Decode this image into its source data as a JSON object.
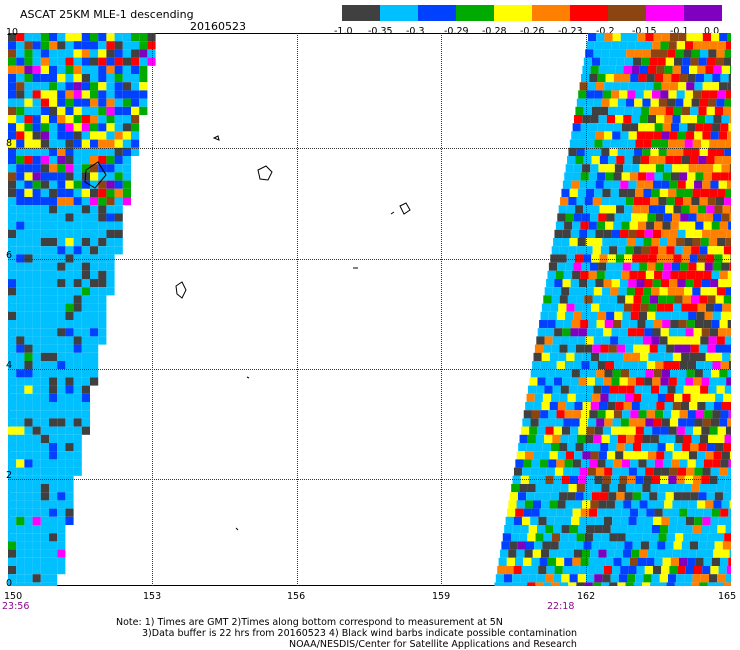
{
  "header": {
    "title": "ASCAT 25KM MLE-1 descending",
    "date": "20160523"
  },
  "colorbar": {
    "colors": [
      "#404040",
      "#00c0ff",
      "#0040ff",
      "#00aa00",
      "#ffff00",
      "#ff8000",
      "#ff0000",
      "#8b4513",
      "#ff00ff",
      "#8000c0"
    ],
    "labels": [
      "-1.0",
      "-0.35",
      "-0.3",
      "-0.29",
      "-0.28",
      "-0.26",
      "-0.23",
      "-0.2",
      "-0.15",
      "-0.1",
      "0.0"
    ]
  },
  "axes": {
    "x_ticks": [
      "150",
      "153",
      "156",
      "159",
      "162",
      "165"
    ],
    "y_ticks": [
      "10",
      "8",
      "6",
      "4",
      "2",
      "0"
    ]
  },
  "times": {
    "left": "23:56",
    "right": "22:18"
  },
  "notes": {
    "line1": "Note: 1) Times are GMT 2)Times along bottom correspond to measurement at 5N",
    "line2": "3)Data buffer is 22 hrs from 20160523 4) Black wind barbs indicate possible contamination",
    "line3": "NOAA/NESDIS/Center for Satellite Applications and Research"
  }
}
